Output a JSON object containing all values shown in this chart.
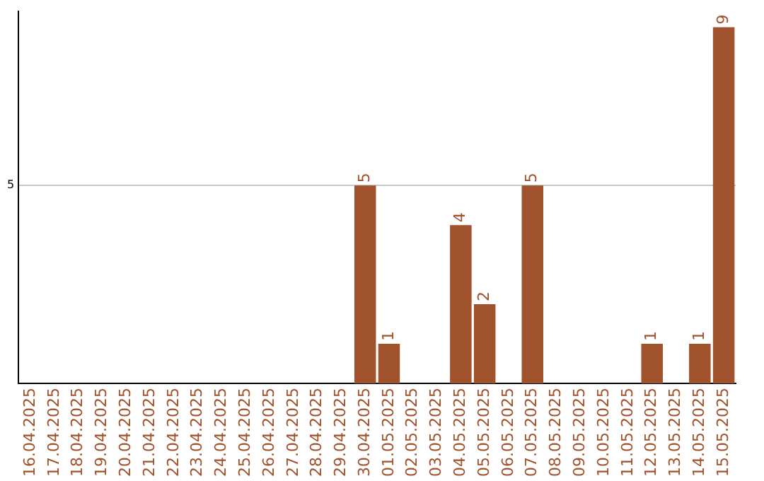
{
  "chart_data": {
    "type": "bar",
    "categories": [
      "16.04.2025",
      "17.04.2025",
      "18.04.2025",
      "19.04.2025",
      "20.04.2025",
      "21.04.2025",
      "22.04.2025",
      "23.04.2025",
      "24.04.2025",
      "25.04.2025",
      "26.04.2025",
      "27.04.2025",
      "28.04.2025",
      "29.04.2025",
      "30.04.2025",
      "01.05.2025",
      "02.05.2025",
      "03.05.2025",
      "04.05.2025",
      "05.05.2025",
      "06.05.2025",
      "07.05.2025",
      "08.05.2025",
      "09.05.2025",
      "10.05.2025",
      "11.05.2025",
      "12.05.2025",
      "13.05.2025",
      "14.05.2025",
      "15.05.2025"
    ],
    "values": [
      null,
      null,
      null,
      null,
      null,
      null,
      null,
      null,
      null,
      null,
      null,
      null,
      null,
      null,
      5,
      1,
      null,
      null,
      4,
      2,
      null,
      5,
      null,
      null,
      null,
      null,
      1,
      null,
      1,
      9
    ],
    "data_labels": true,
    "color": "#a0522d",
    "ylim": [
      0,
      9.4
    ],
    "yticks": [
      5
    ],
    "grid": "y",
    "legend": false
  }
}
